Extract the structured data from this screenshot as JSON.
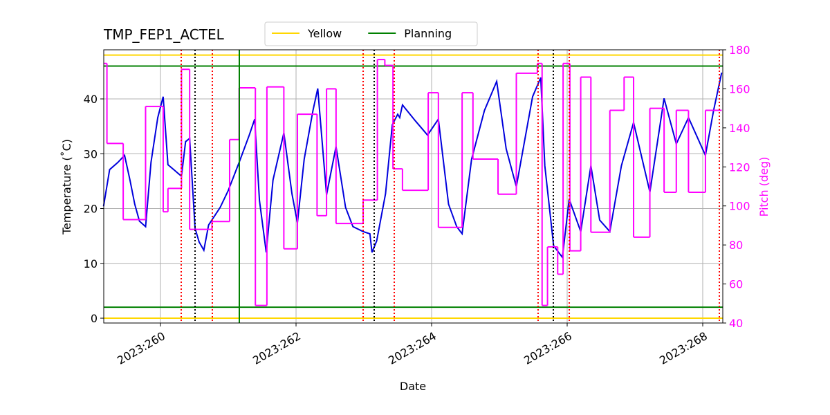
{
  "chart_data": {
    "type": "line",
    "title": "TMP_FEP1_ACTEL",
    "xlabel": "Date",
    "ylabel": "Temperature (˚C)",
    "y2label": "Pitch (deg)",
    "y2color": "#ff00ff",
    "grid": true,
    "xlim": [
      259.163,
      268.296
    ],
    "xticks": [
      {
        "value": 260,
        "label": "2023:260"
      },
      {
        "value": 262,
        "label": "2023:262"
      },
      {
        "value": 264,
        "label": "2023:264"
      },
      {
        "value": 266,
        "label": "2023:266"
      },
      {
        "value": 268,
        "label": "2023:268"
      }
    ],
    "ylim": [
      -0.88,
      48.96
    ],
    "yticks": [
      0,
      10,
      20,
      30,
      40
    ],
    "y2lim": [
      40,
      180
    ],
    "y2ticks": [
      40,
      60,
      80,
      100,
      120,
      140,
      160,
      180
    ],
    "series": [
      {
        "color": "#0000dd",
        "drawstyle": "default",
        "x": [
          259.16,
          259.25,
          259.37,
          259.47,
          259.55,
          259.62,
          259.69,
          259.78,
          259.86,
          259.96,
          260.04,
          260.11,
          260.31,
          260.37,
          260.43,
          260.51,
          260.57,
          260.64,
          260.71,
          260.88,
          261.0,
          261.16,
          261.31,
          261.39,
          261.46,
          261.56,
          261.66,
          261.82,
          261.94,
          262.02,
          262.12,
          262.25,
          262.32,
          262.45,
          262.59,
          262.73,
          262.84,
          262.99,
          263.09,
          263.12,
          263.19,
          263.32,
          263.42,
          263.5,
          263.53,
          263.57,
          263.76,
          263.94,
          264.1,
          264.25,
          264.37,
          264.45,
          264.59,
          264.78,
          264.96,
          265.1,
          265.25,
          265.49,
          265.61,
          265.67,
          265.8,
          265.93,
          266.03,
          266.2,
          266.35,
          266.48,
          266.63,
          266.8,
          266.98,
          267.22,
          267.43,
          267.61,
          267.79,
          268.04,
          268.16,
          268.28
        ],
        "values": [
          20.4,
          27.1,
          28.4,
          29.7,
          25.2,
          20.8,
          17.7,
          16.7,
          28.4,
          36.6,
          40.4,
          28,
          25.9,
          32.2,
          32.8,
          16.4,
          13.9,
          12.4,
          17,
          20.2,
          23.3,
          28.4,
          33.4,
          36.3,
          21.5,
          12,
          25.2,
          33.8,
          22.7,
          17.4,
          29,
          37.9,
          41.9,
          22.5,
          31.3,
          20.2,
          16.7,
          15.8,
          15.4,
          12,
          14.1,
          22.7,
          35.3,
          37.2,
          36.6,
          38.9,
          36,
          33.4,
          36.3,
          20.8,
          16.7,
          15.4,
          29,
          37.9,
          43.2,
          30.9,
          24,
          40.4,
          43.9,
          27.8,
          13.2,
          11.1,
          21.7,
          15.8,
          27.8,
          17.9,
          15.8,
          27.8,
          35.7,
          23,
          40.1,
          31.8,
          36.6,
          29.7,
          37.9,
          44.8
        ]
      },
      {
        "color": "#ff00ff",
        "axis": "y2",
        "drawstyle": "steps-post",
        "x": [
          259.16,
          259.21,
          259.45,
          259.78,
          260.04,
          260.11,
          260.31,
          260.43,
          260.76,
          261.02,
          261.16,
          261.4,
          261.57,
          261.82,
          262.02,
          262.31,
          262.45,
          262.59,
          262.99,
          263.2,
          263.31,
          263.43,
          263.57,
          263.95,
          264.1,
          264.45,
          264.61,
          264.98,
          265.25,
          265.56,
          265.63,
          265.71,
          265.86,
          265.94,
          266.04,
          266.2,
          266.35,
          266.63,
          266.84,
          266.98,
          267.22,
          267.43,
          267.61,
          267.79,
          268.04,
          268.28
        ],
        "values": [
          173,
          132,
          93,
          151,
          97,
          109,
          170,
          88,
          92,
          134,
          160.5,
          49,
          161,
          78,
          147,
          95,
          160,
          91,
          103,
          175,
          172,
          119,
          108,
          158,
          89,
          158,
          124,
          106,
          168,
          173,
          49,
          79,
          65,
          173,
          77,
          166,
          86.5,
          149,
          166,
          84,
          150,
          107,
          149,
          107,
          149,
          149
        ]
      }
    ],
    "hlines": [
      {
        "name": "Yellow",
        "color": "#ffd700",
        "values": [
          0,
          48
        ]
      },
      {
        "name": "Planning",
        "color": "#008000",
        "values": [
          2,
          46
        ]
      }
    ],
    "vlines": [
      {
        "color": "#ff0000",
        "style": "dotted",
        "values": [
          260.306,
          260.765,
          262.99,
          263.449,
          265.571,
          266.031,
          268.245
        ]
      },
      {
        "color": "#000000",
        "style": "dotted",
        "values": [
          260.51,
          263.153,
          265.796
        ]
      },
      {
        "color": "#008000",
        "style": "solid",
        "values": [
          261.163
        ]
      }
    ]
  }
}
